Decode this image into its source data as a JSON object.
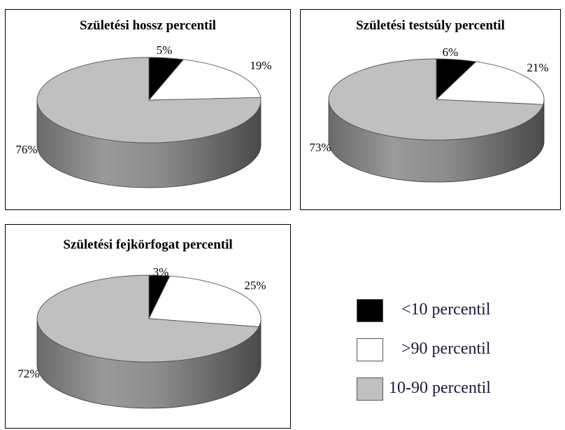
{
  "colors": {
    "below10": "#000000",
    "above90": "#ffffff",
    "middle": "#c0c0c0"
  },
  "chart_data": [
    {
      "type": "pie",
      "title": "Születési hossz percentil",
      "categories": [
        "<10 percentil",
        ">90 percentil",
        "10-90 percentil"
      ],
      "values": [
        5,
        19,
        76
      ],
      "labels": [
        "5%",
        "19%",
        "76%"
      ]
    },
    {
      "type": "pie",
      "title": "Születési testsúly percentil",
      "categories": [
        "<10 percentil",
        ">90 percentil",
        "10-90 percentil"
      ],
      "values": [
        6,
        21,
        73
      ],
      "labels": [
        "6%",
        "21%",
        "73%"
      ]
    },
    {
      "type": "pie",
      "title": "Születési fejkörfogat percentil",
      "categories": [
        "<10 percentil",
        ">90 percentil",
        "10-90 percentil"
      ],
      "values": [
        3,
        25,
        72
      ],
      "labels": [
        "3%",
        "25%",
        "72%"
      ]
    }
  ],
  "legend": {
    "placement": "bottom-right",
    "items": [
      {
        "label": "<10 percentil",
        "color": "#000000"
      },
      {
        "label": ">90 percentil",
        "color": "#ffffff"
      },
      {
        "label": "10-90 percentil",
        "color": "#c0c0c0"
      }
    ]
  }
}
